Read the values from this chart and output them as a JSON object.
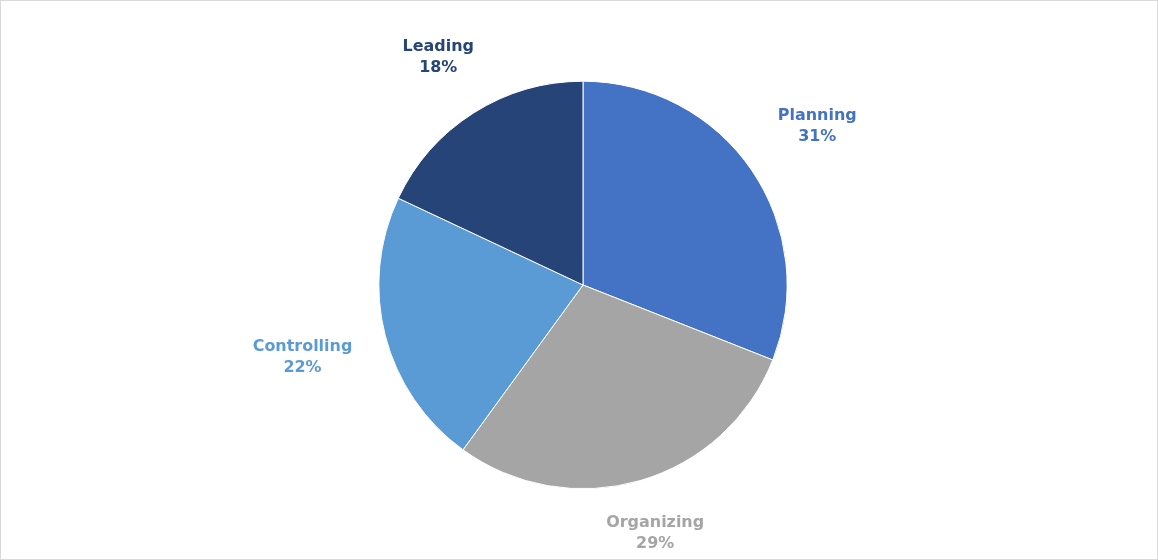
{
  "chart_data": {
    "type": "pie",
    "categories": [
      "Planning",
      "Organizing",
      "Controlling",
      "Leading"
    ],
    "values": [
      31,
      29,
      22,
      18
    ],
    "value_labels": [
      "31%",
      "29%",
      "22%",
      "18%"
    ],
    "colors": [
      "#4472c4",
      "#a5a5a5",
      "#5b9bd5",
      "#264478"
    ],
    "legend": false
  }
}
